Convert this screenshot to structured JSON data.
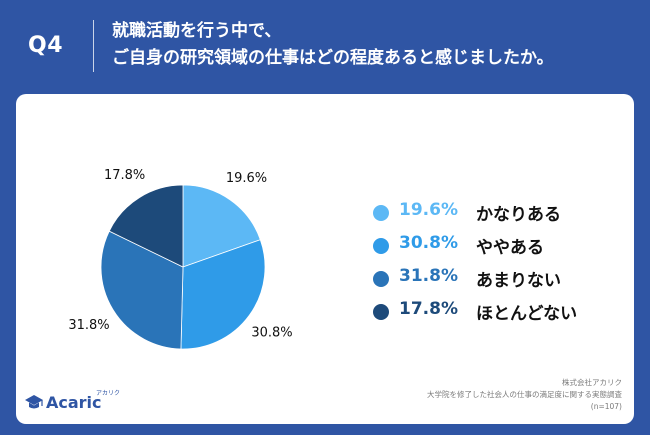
{
  "header": {
    "question_number": "Q4",
    "question_line1": "就職活動を行う中で、",
    "question_line2": "ご自身の研究領域の仕事はどの程度あると感じましたか。"
  },
  "chart_data": {
    "type": "pie",
    "title": "ご自身の研究領域の仕事はどの程度あると感じましたか。",
    "categories": [
      "かなりある",
      "ややある",
      "あまりない",
      "ほとんどない"
    ],
    "values": [
      19.6,
      30.8,
      31.8,
      17.8
    ],
    "value_labels": [
      "19.6%",
      "30.8%",
      "31.8%",
      "17.8%"
    ],
    "colors": [
      "#5cb8f5",
      "#2f9be8",
      "#2a74b8",
      "#1d4a7a"
    ],
    "start_angle": "12 o'clock",
    "direction": "clockwise",
    "legend_position": "right"
  },
  "legend": [
    {
      "pct": "19.6%",
      "label": "かなりある",
      "color": "#5cb8f5"
    },
    {
      "pct": "30.8%",
      "label": "ややある",
      "color": "#2f9be8"
    },
    {
      "pct": "31.8%",
      "label": "あまりない",
      "color": "#2a74b8"
    },
    {
      "pct": "17.8%",
      "label": "ほとんどない",
      "color": "#1d4a7a"
    }
  ],
  "footer": {
    "logo_text": "Acaric",
    "logo_kana": "アカリク",
    "source_company": "株式会社アカリク",
    "source_survey": "大学院を修了した社会人の仕事の満足度に関する実態調査",
    "sample_size": "(n=107)"
  }
}
